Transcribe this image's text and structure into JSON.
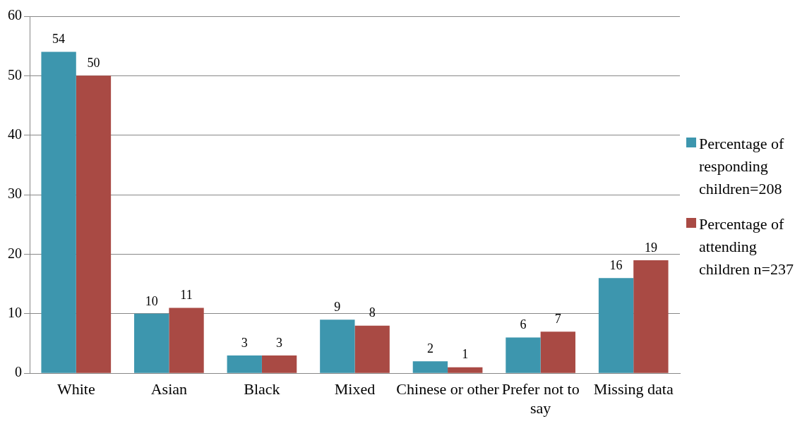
{
  "chart_data": {
    "type": "bar",
    "categories": [
      "White",
      "Asian",
      "Black",
      "Mixed",
      "Chinese or other",
      "Prefer not to say",
      "Missing data"
    ],
    "series": [
      {
        "name": "Percentage of responding children=208",
        "color": "#3d96ae",
        "values": [
          54,
          10,
          3,
          9,
          2,
          6,
          16
        ]
      },
      {
        "name": "Percentage of attending children n=237",
        "color": "#a94a44",
        "values": [
          50,
          11,
          3,
          8,
          1,
          7,
          19
        ]
      }
    ],
    "ylim": [
      0,
      60
    ],
    "yticks": [
      0,
      10,
      20,
      30,
      40,
      50,
      60
    ],
    "grid": "y",
    "legend": "right",
    "data_labels": true
  }
}
